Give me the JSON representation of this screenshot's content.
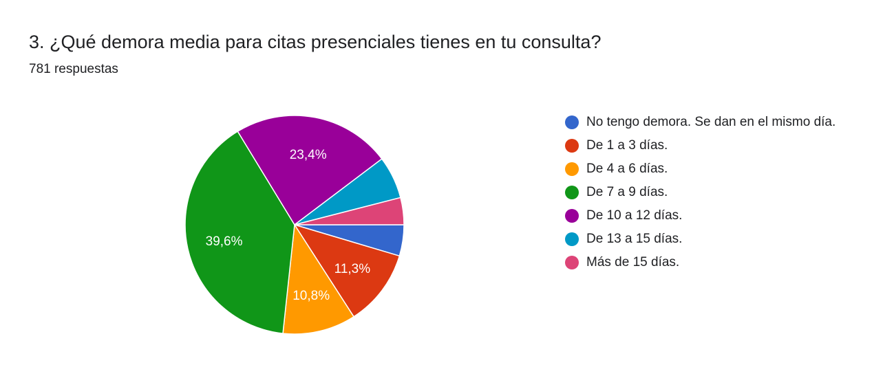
{
  "header": {
    "title": "3. ¿Qué demora media para citas presenciales tienes en tu consulta?",
    "responses": "781 respuestas"
  },
  "chart_data": {
    "type": "pie",
    "title": "3. ¿Qué demora media para citas presenciales tienes en tu consulta?",
    "subtitle": "781 respuestas",
    "legend_position": "right",
    "slices": [
      {
        "label": "No tengo demora. Se dan en el mismo día.",
        "value": 4.6,
        "color": "#3366cc",
        "data_label": ""
      },
      {
        "label": "De 1 a 3 días.",
        "value": 11.3,
        "color": "#dc3912",
        "data_label": "11,3%"
      },
      {
        "label": "De 4 a 6 días.",
        "value": 10.8,
        "color": "#ff9900",
        "data_label": "10,8%"
      },
      {
        "label": "De 7 a 9 días.",
        "value": 39.6,
        "color": "#109618",
        "data_label": "39,6%"
      },
      {
        "label": "De 10 a 12 días.",
        "value": 23.4,
        "color": "#990099",
        "data_label": "23,4%"
      },
      {
        "label": "De 13 a 15 días.",
        "value": 6.3,
        "color": "#0099c6",
        "data_label": ""
      },
      {
        "label": "Más de 15 días.",
        "value": 4.0,
        "color": "#dd4477",
        "data_label": ""
      }
    ]
  }
}
